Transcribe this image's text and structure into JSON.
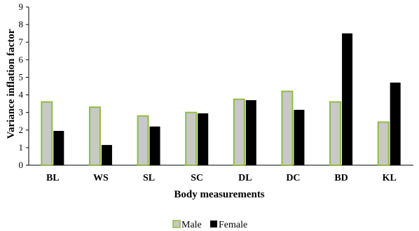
{
  "chart_data": {
    "type": "bar",
    "title": "",
    "xlabel": "Body measurements",
    "ylabel": "Variance inflation factor",
    "categories": [
      "BL",
      "WS",
      "SL",
      "SC",
      "DL",
      "DC",
      "BD",
      "KL"
    ],
    "series": [
      {
        "name": "Male",
        "values": [
          3.6,
          3.3,
          2.8,
          3.0,
          3.75,
          4.2,
          3.6,
          2.45
        ]
      },
      {
        "name": "Female",
        "values": [
          1.95,
          1.15,
          2.2,
          2.95,
          3.7,
          3.15,
          7.5,
          4.7
        ]
      }
    ],
    "ylim": [
      0,
      9
    ],
    "yticks": [
      "0",
      "1",
      "2",
      "3",
      "4",
      "5",
      "6",
      "7",
      "8",
      "9"
    ],
    "grid": false,
    "legend_position": "bottom",
    "colors": {
      "male_fill": "#c8c8c8",
      "male_stroke": "#8fbc45",
      "female_fill": "#000000",
      "axis": "#000000"
    }
  }
}
